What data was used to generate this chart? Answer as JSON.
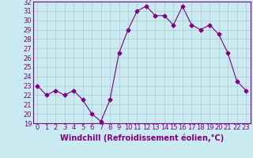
{
  "x": [
    0,
    1,
    2,
    3,
    4,
    5,
    6,
    7,
    8,
    9,
    10,
    11,
    12,
    13,
    14,
    15,
    16,
    17,
    18,
    19,
    20,
    21,
    22,
    23
  ],
  "y": [
    23,
    22,
    22.5,
    22,
    22.5,
    21.5,
    20,
    19.2,
    21.5,
    26.5,
    29,
    31,
    31.5,
    30.5,
    30.5,
    29.5,
    31.5,
    29.5,
    29,
    29.5,
    28.5,
    26.5,
    23.5,
    22.5
  ],
  "line_color": "#800080",
  "marker": "D",
  "marker_size": 2.5,
  "background_color": "#c8eaf0",
  "grid_color": "#b0c8cc",
  "xlabel": "Windchill (Refroidissement éolien,°C)",
  "xlabel_fontsize": 7,
  "tick_fontsize": 6,
  "ylim": [
    19,
    32
  ],
  "xlim": [
    -0.5,
    23.5
  ],
  "yticks": [
    19,
    20,
    21,
    22,
    23,
    24,
    25,
    26,
    27,
    28,
    29,
    30,
    31,
    32
  ],
  "xticks": [
    0,
    1,
    2,
    3,
    4,
    5,
    6,
    7,
    8,
    9,
    10,
    11,
    12,
    13,
    14,
    15,
    16,
    17,
    18,
    19,
    20,
    21,
    22,
    23
  ]
}
